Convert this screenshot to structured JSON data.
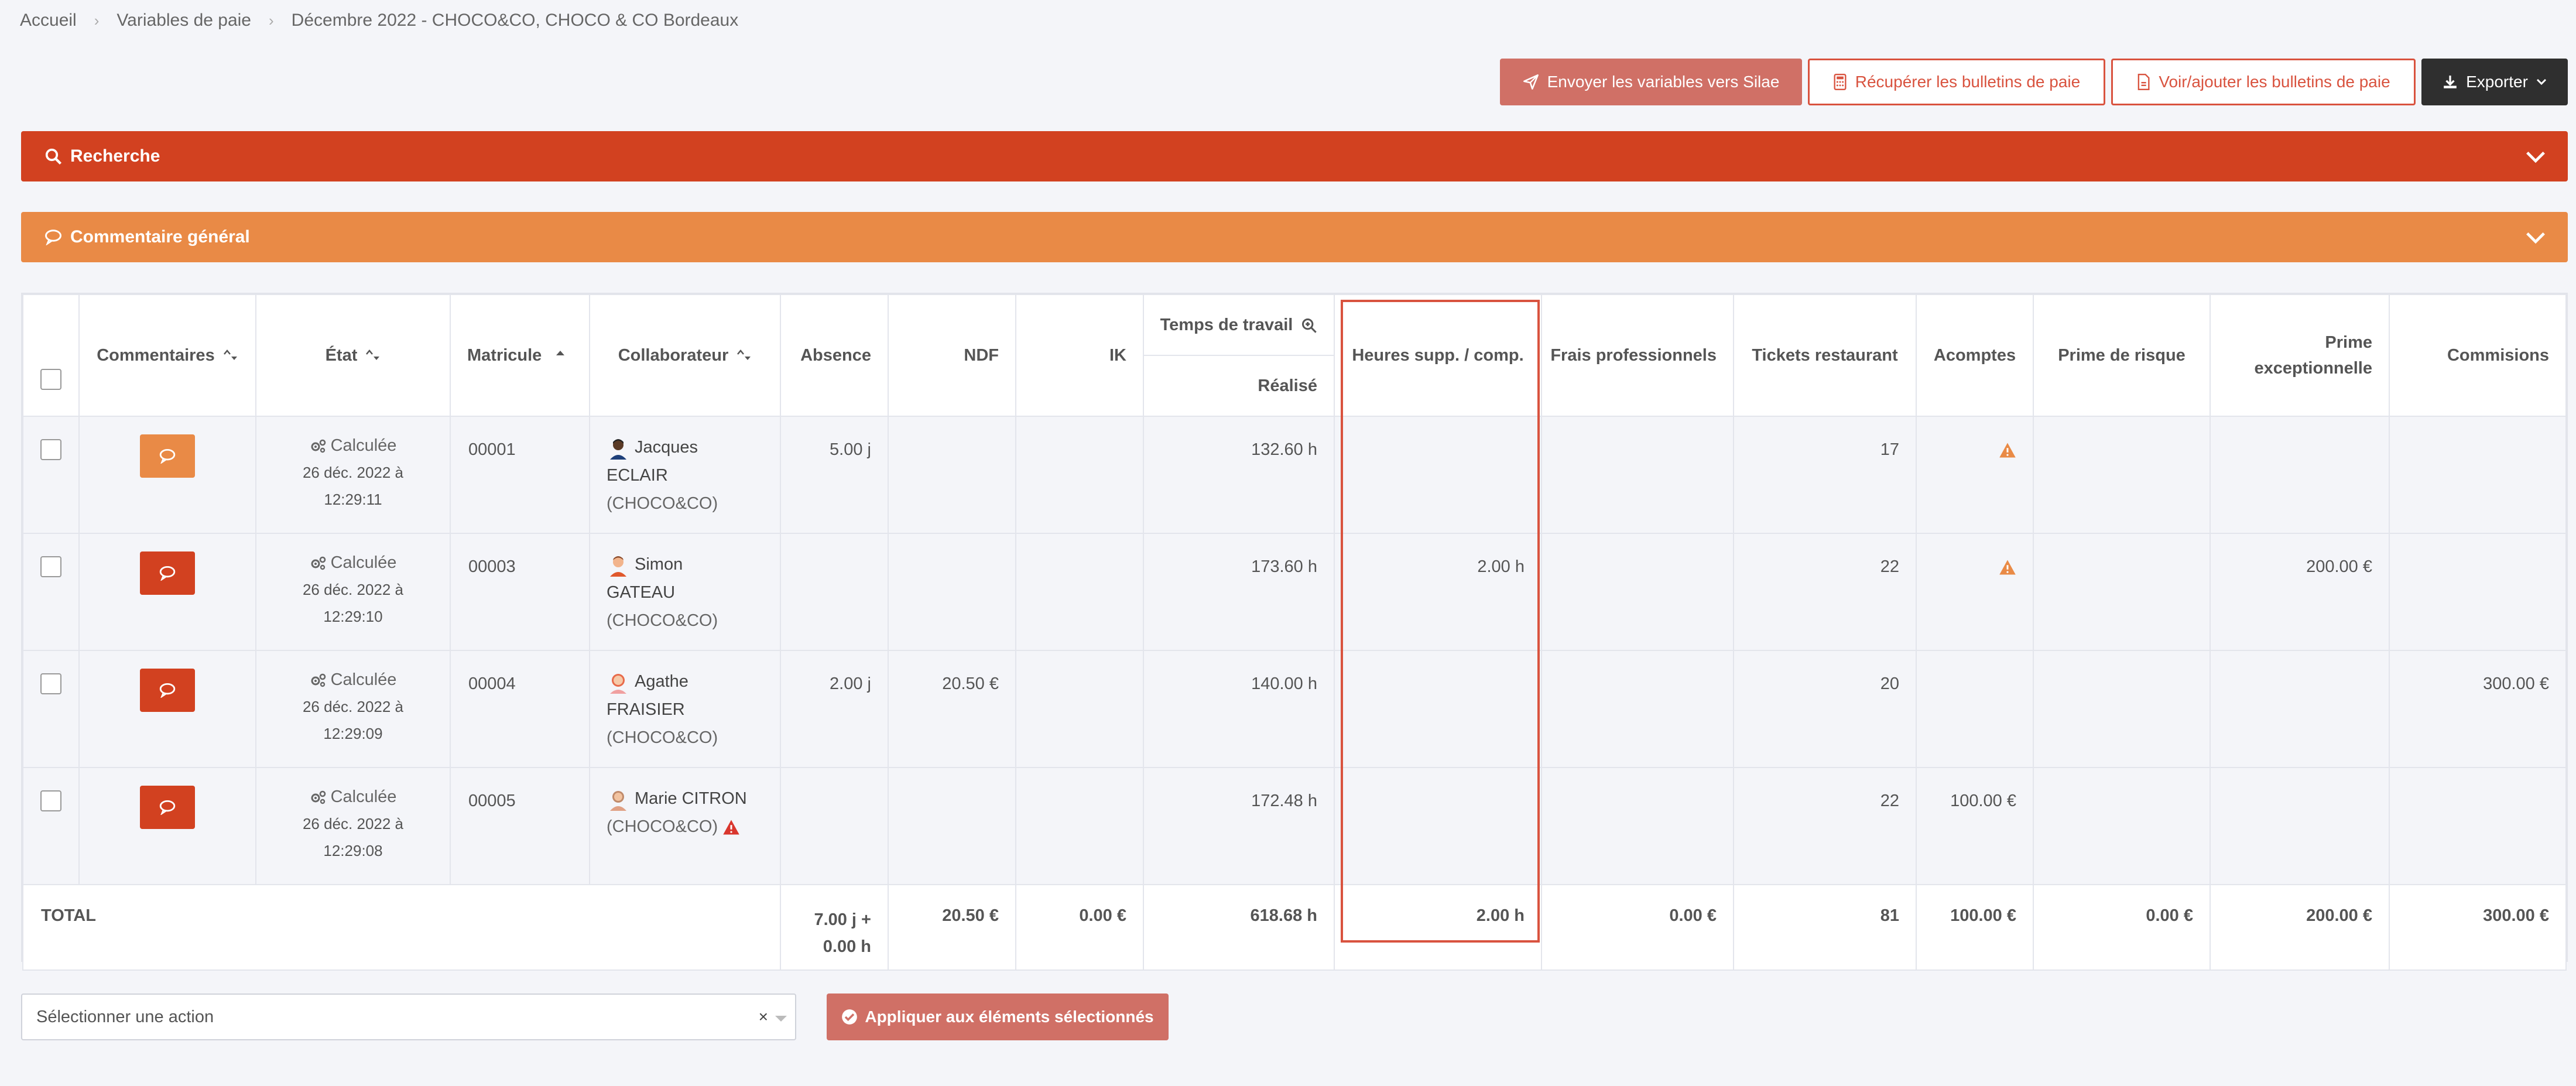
{
  "breadcrumb": [
    "Accueil",
    "Variables de paie",
    "Décembre 2022 - CHOCO&CO, CHOCO & CO Bordeaux"
  ],
  "actions": {
    "send": "Envoyer les variables vers Silae",
    "recup": "Récupérer les bulletins de paie",
    "voir": "Voir/ajouter les bulletins de paie",
    "export": "Exporter"
  },
  "accordions": {
    "search": "Recherche",
    "comment": "Commentaire général"
  },
  "table": {
    "headers": {
      "commentaires": "Commentaires",
      "etat": "État",
      "matricule": "Matricule",
      "collaborateur": "Collaborateur",
      "absence": "Absence",
      "ndf": "NDF",
      "ik": "IK",
      "temps": "Temps de travail",
      "realise": "Réalisé",
      "heures": "Heures supp. / comp.",
      "frais": "Frais professionnels",
      "tickets": "Tickets restaurant",
      "acomptes": "Acomptes",
      "prime_risque": "Prime de risque",
      "prime_exc": "Prime exceptionnelle",
      "commisions": "Commisions"
    },
    "rows": [
      {
        "etat": "Calculée",
        "date": "26 déc. 2022 à",
        "time": "12:29:11",
        "matricule": "00001",
        "first": "Jacques",
        "last": "ECLAIR",
        "company": "(CHOCO&CO)",
        "absence": "5.00 j",
        "ndf": "",
        "ik": "",
        "realise": "132.60 h",
        "heures": "",
        "frais": "",
        "tickets": "17",
        "acomptes": "",
        "prime_risque": "",
        "prime_exc": "",
        "commisions": ""
      },
      {
        "etat": "Calculée",
        "date": "26 déc. 2022 à",
        "time": "12:29:10",
        "matricule": "00003",
        "first": "Simon",
        "last": "GATEAU",
        "company": "(CHOCO&CO)",
        "absence": "",
        "ndf": "",
        "ik": "",
        "realise": "173.60 h",
        "heures": "2.00 h",
        "frais": "",
        "tickets": "22",
        "acomptes": "",
        "prime_risque": "",
        "prime_exc": "200.00 €",
        "commisions": ""
      },
      {
        "etat": "Calculée",
        "date": "26 déc. 2022 à",
        "time": "12:29:09",
        "matricule": "00004",
        "first": "Agathe",
        "last": "FRAISIER",
        "company": "(CHOCO&CO)",
        "absence": "2.00 j",
        "ndf": "20.50 €",
        "ik": "",
        "realise": "140.00 h",
        "heures": "",
        "frais": "",
        "tickets": "20",
        "acomptes": "",
        "prime_risque": "",
        "prime_exc": "",
        "commisions": "300.00 €"
      },
      {
        "etat": "Calculée",
        "date": "26 déc. 2022 à",
        "time": "12:29:08",
        "matricule": "00005",
        "first": "Marie CITRON",
        "last": "",
        "company": "(CHOCO&CO)",
        "absence": "",
        "ndf": "",
        "ik": "",
        "realise": "172.48 h",
        "heures": "",
        "frais": "",
        "tickets": "22",
        "acomptes": "100.00 €",
        "prime_risque": "",
        "prime_exc": "",
        "commisions": ""
      }
    ],
    "total": {
      "label": "TOTAL",
      "absence_1": "7.00 j +",
      "absence_2": "0.00 h",
      "ndf": "20.50 €",
      "ik": "0.00 €",
      "realise": "618.68 h",
      "heures": "2.00 h",
      "frais": "0.00 €",
      "tickets": "81",
      "acomptes": "100.00 €",
      "prime_risque": "0.00 €",
      "prime_exc": "200.00 €",
      "commisions": "300.00 €"
    }
  },
  "bottom": {
    "select_placeholder": "Sélectionner une action",
    "clear": "×",
    "apply": "Appliquer aux éléments sélectionnés"
  },
  "colors": {
    "search_bar": "#d24120",
    "comment_bar": "#e98a46",
    "send_button": "#d07066",
    "export_button": "#2f2f2f",
    "highlight": "#d9533f",
    "warning": "#e98a46"
  }
}
